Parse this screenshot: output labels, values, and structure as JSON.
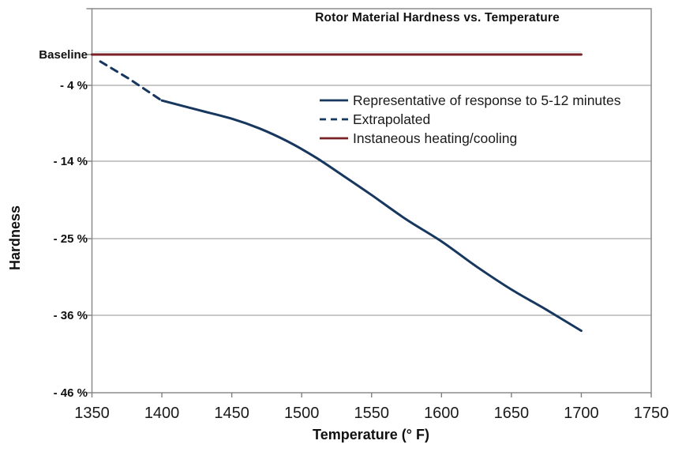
{
  "chart_data": {
    "type": "line",
    "title": "Rotor Material Hardness vs. Temperature",
    "xlabel": "Temperature (° F)",
    "ylabel": "Hardness",
    "xlim": [
      1350,
      1750
    ],
    "x_ticks": [
      1350,
      1400,
      1450,
      1500,
      1550,
      1600,
      1650,
      1700,
      1750
    ],
    "y_ticks": [
      {
        "label": "Baseline",
        "value": 0
      },
      {
        "label": "- 4 %",
        "value": -4
      },
      {
        "label": "- 14 %",
        "value": -14
      },
      {
        "label": "- 25 %",
        "value": -25
      },
      {
        "label": "- 36 %",
        "value": -36
      },
      {
        "label": "- 46 %",
        "value": -46
      }
    ],
    "grid": "horizontal",
    "legend_position": "inside-top-center",
    "colors": {
      "line_blue": "#17375e",
      "line_dark_red": "#7a2127",
      "gridline_gray": "#a6a6a6",
      "axis_gray": "#7f7f7f"
    },
    "series": [
      {
        "name": "Representative of response to 5-12 minutes",
        "style": "solid",
        "color": "#17375e",
        "points": [
          [
            1400,
            -6.0
          ],
          [
            1425,
            -7.2
          ],
          [
            1450,
            -8.4
          ],
          [
            1470,
            -9.7
          ],
          [
            1490,
            -11.4
          ],
          [
            1510,
            -13.5
          ],
          [
            1530,
            -16.1
          ],
          [
            1550,
            -18.8
          ],
          [
            1575,
            -22.3
          ],
          [
            1600,
            -25.4
          ],
          [
            1625,
            -29.0
          ],
          [
            1650,
            -32.3
          ],
          [
            1675,
            -35.2
          ],
          [
            1700,
            -38.0
          ]
        ]
      },
      {
        "name": "Extrapolated",
        "style": "dashed",
        "color": "#17375e",
        "points": [
          [
            1356,
            -0.9
          ],
          [
            1377,
            -3.2
          ],
          [
            1399,
            -5.9
          ]
        ]
      },
      {
        "name": "Instaneous heating/cooling",
        "style": "solid",
        "color": "#7a2127",
        "points": [
          [
            1350,
            0
          ],
          [
            1700,
            0
          ]
        ]
      }
    ]
  }
}
